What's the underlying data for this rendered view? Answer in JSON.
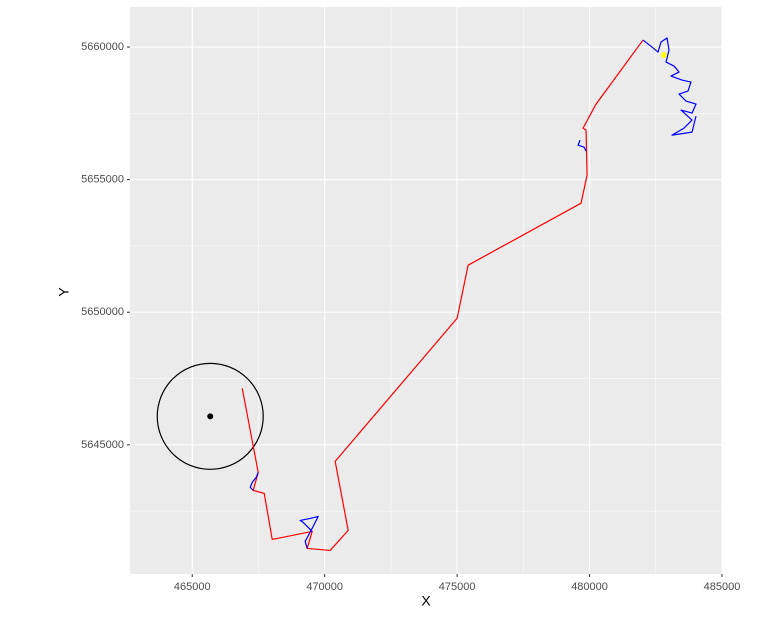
{
  "chart_data": {
    "type": "path",
    "x_label": "X",
    "y_label": "Y",
    "xlim": [
      462650,
      485000
    ],
    "ylim": [
      5640130,
      5661510
    ],
    "xticks": [
      465000,
      470000,
      475000,
      480000,
      485000
    ],
    "yticks": [
      5645000,
      5650000,
      5655000,
      5660000
    ],
    "grid": true,
    "series": [
      {
        "color": "#ff0000",
        "mode": "line",
        "x": [
          466887,
          467491,
          467302,
          467717,
          468019,
          469528,
          469340,
          470208,
          470887,
          470396,
          475000,
          475415,
          479679,
          479906,
          479868,
          479755,
          480245,
          482019
        ],
        "values": [
          5647132,
          5643962,
          5643283,
          5643170,
          5641434,
          5641736,
          5641094,
          5641019,
          5641774,
          5644377,
          5649774,
          5651774,
          5654113,
          5655170,
          5656868,
          5656943,
          5657849,
          5660264
        ]
      },
      {
        "color": "#0000ff",
        "mode": "line",
        "x": [
          467491,
          467415,
          467264,
          467189,
          467302,
          null,
          469528,
          469189,
          469075,
          469453,
          469755,
          469566,
          469264,
          469340,
          null,
          479642,
          479566,
          479792,
          479868,
          null,
          482019,
          482358,
          482585,
          482698,
          482925,
          483000,
          482887,
          483189,
          483377,
          483075,
          483491,
          483830,
          483717,
          483377,
          483642,
          484019,
          483868,
          483453,
          483868,
          483566,
          483113,
          483868,
          484019
        ],
        "values": [
          5643962,
          5643774,
          5643585,
          5643396,
          5643283,
          null,
          5641736,
          5642075,
          5642151,
          5642226,
          5642302,
          5641925,
          5641358,
          5641094,
          null,
          5656490,
          5656302,
          5656226,
          5656075,
          null,
          5660264,
          5660000,
          5659811,
          5660189,
          5660340,
          5659887,
          5659434,
          5659283,
          5659057,
          5658906,
          5658755,
          5658679,
          5658340,
          5658226,
          5657962,
          5657849,
          5657509,
          5657623,
          5657245,
          5656943,
          5656679,
          5656792,
          5657396
        ]
      },
      {
        "color": "#ffff00",
        "mode": "point",
        "x": [
          482811
        ],
        "values": [
          5659698
        ]
      },
      {
        "color": "#000000",
        "mode": "point",
        "x": [
          465679
        ],
        "values": [
          5646075
        ]
      }
    ],
    "circles": [
      {
        "x": 465679,
        "y": 5646075,
        "r": 2000,
        "color": "#000000"
      }
    ]
  }
}
